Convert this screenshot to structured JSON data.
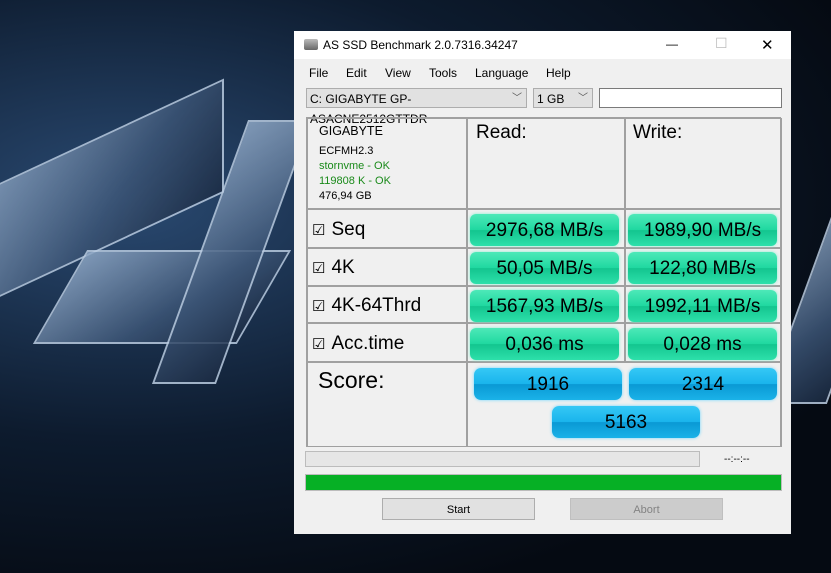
{
  "window": {
    "title": "AS SSD Benchmark 2.0.7316.34247",
    "minimize": "—",
    "maximize": "☐",
    "close": "✕"
  },
  "menu": [
    "File",
    "Edit",
    "View",
    "Tools",
    "Language",
    "Help"
  ],
  "drive_select": "C: GIGABYTE GP-ASACNE2512GTTDR",
  "size_select": "1 GB",
  "text_field": "",
  "info": {
    "vendor": "GIGABYTE",
    "firmware": "ECFMH2.3",
    "driver": "stornvme - OK",
    "alignment": "119808 K - OK",
    "capacity": "476,94 GB"
  },
  "headers": {
    "read": "Read:",
    "write": "Write:"
  },
  "rows": [
    {
      "label": "Seq",
      "read": "2976,68 MB/s",
      "write": "1989,90 MB/s",
      "checked": true
    },
    {
      "label": "4K",
      "read": "50,05 MB/s",
      "write": "122,80 MB/s",
      "checked": true
    },
    {
      "label": "4K-64Thrd",
      "read": "1567,93 MB/s",
      "write": "1992,11 MB/s",
      "checked": true
    },
    {
      "label": "Acc.time",
      "read": "0,036 ms",
      "write": "0,028 ms",
      "checked": true
    }
  ],
  "score": {
    "label": "Score:",
    "read": "1916",
    "write": "2314",
    "total": "5163"
  },
  "progress": {
    "test_progress": 0,
    "time": "--:--:--",
    "overall_progress": 100,
    "overall_color": "#06b025"
  },
  "buttons": {
    "start": "Start",
    "abort": "Abort"
  },
  "checkbox_glyph": "☑"
}
